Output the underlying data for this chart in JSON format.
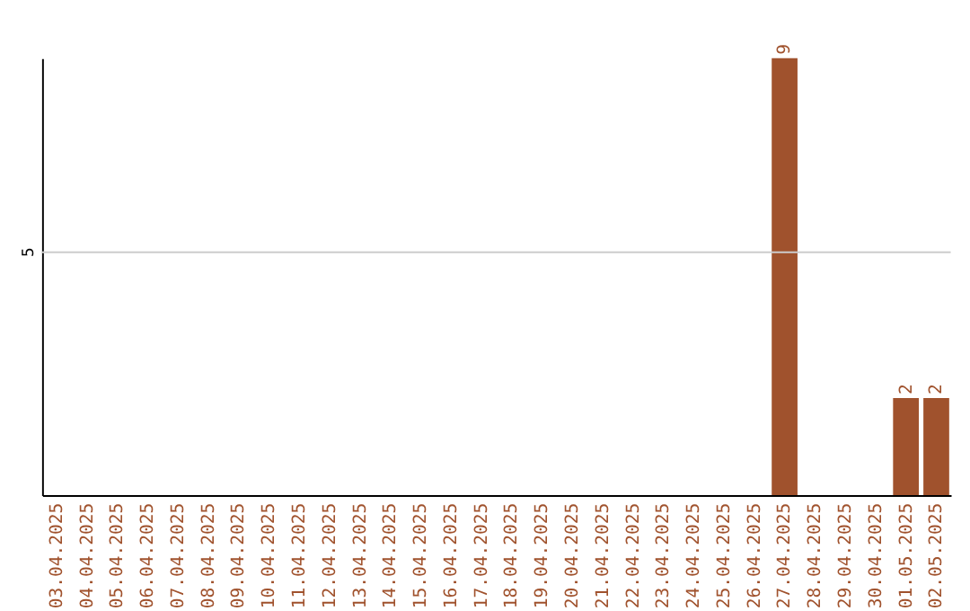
{
  "chart_data": {
    "type": "bar",
    "categories": [
      "03.04.2025",
      "04.04.2025",
      "05.04.2025",
      "06.04.2025",
      "07.04.2025",
      "08.04.2025",
      "09.04.2025",
      "10.04.2025",
      "11.04.2025",
      "12.04.2025",
      "13.04.2025",
      "14.04.2025",
      "15.04.2025",
      "16.04.2025",
      "17.04.2025",
      "18.04.2025",
      "19.04.2025",
      "20.04.2025",
      "21.04.2025",
      "22.04.2025",
      "23.04.2025",
      "24.04.2025",
      "25.04.2025",
      "26.04.2025",
      "27.04.2025",
      "28.04.2025",
      "29.04.2025",
      "30.04.2025",
      "01.05.2025",
      "02.05.2025"
    ],
    "values": [
      null,
      null,
      null,
      null,
      null,
      null,
      null,
      null,
      null,
      null,
      null,
      null,
      null,
      null,
      null,
      null,
      null,
      null,
      null,
      null,
      null,
      null,
      null,
      null,
      9,
      null,
      null,
      null,
      2,
      2
    ],
    "data_labels": true,
    "color": "#a0522d",
    "ref_lines": [
      {
        "axis": "y",
        "value": 5,
        "label": "5",
        "color": "#cccccc"
      }
    ]
  }
}
